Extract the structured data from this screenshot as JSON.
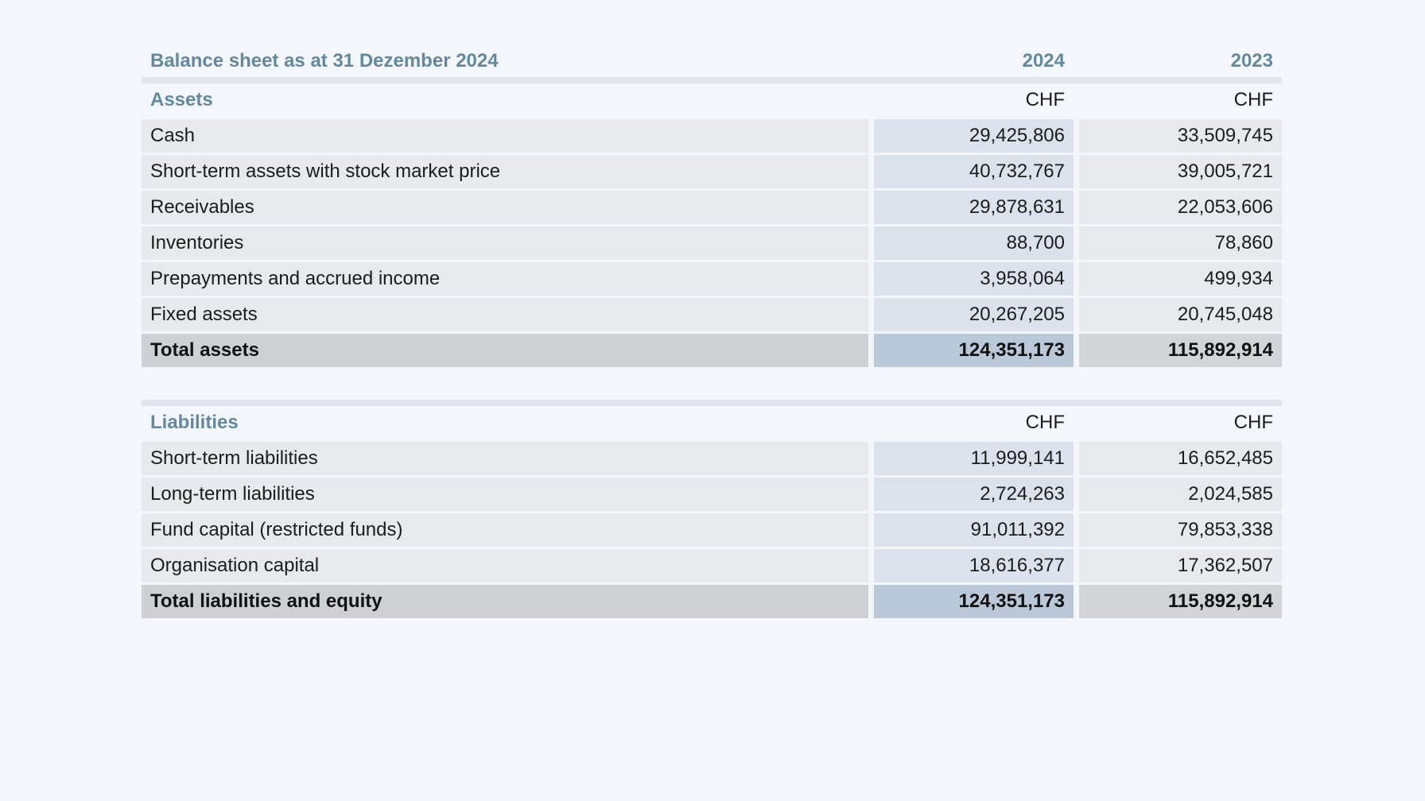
{
  "title": "Balance sheet as at 31 Dezember 2024",
  "years": [
    "2024",
    "2023"
  ],
  "assets": {
    "heading": "Assets",
    "currency": [
      "CHF",
      "CHF"
    ],
    "rows": [
      {
        "label": "Cash",
        "v2024": "29,425,806",
        "v2023": "33,509,745"
      },
      {
        "label": "Short-term assets with stock market price",
        "v2024": "40,732,767",
        "v2023": "39,005,721"
      },
      {
        "label": "Receivables",
        "v2024": "29,878,631",
        "v2023": "22,053,606"
      },
      {
        "label": "Inventories",
        "v2024": "88,700",
        "v2023": "78,860"
      },
      {
        "label": "Prepayments and accrued income",
        "v2024": "3,958,064",
        "v2023": "499,934"
      },
      {
        "label": "Fixed assets",
        "v2024": "20,267,205",
        "v2023": "20,745,048"
      }
    ],
    "total": {
      "label": "Total assets",
      "v2024": "124,351,173",
      "v2023": "115,892,914"
    }
  },
  "liabilities": {
    "heading": "Liabilities",
    "currency": [
      "CHF",
      "CHF"
    ],
    "rows": [
      {
        "label": "Short-term liabilities",
        "v2024": "11,999,141",
        "v2023": "16,652,485"
      },
      {
        "label": "Long-term liabilities",
        "v2024": "2,724,263",
        "v2023": "2,024,585"
      },
      {
        "label": "Fund capital (restricted funds)",
        "v2024": "91,011,392",
        "v2023": "79,853,338"
      },
      {
        "label": "Organisation capital",
        "v2024": "18,616,377",
        "v2023": "17,362,507"
      }
    ],
    "total": {
      "label": "Total liabilities and equity",
      "v2024": "124,351,173",
      "v2023": "115,892,914"
    }
  }
}
